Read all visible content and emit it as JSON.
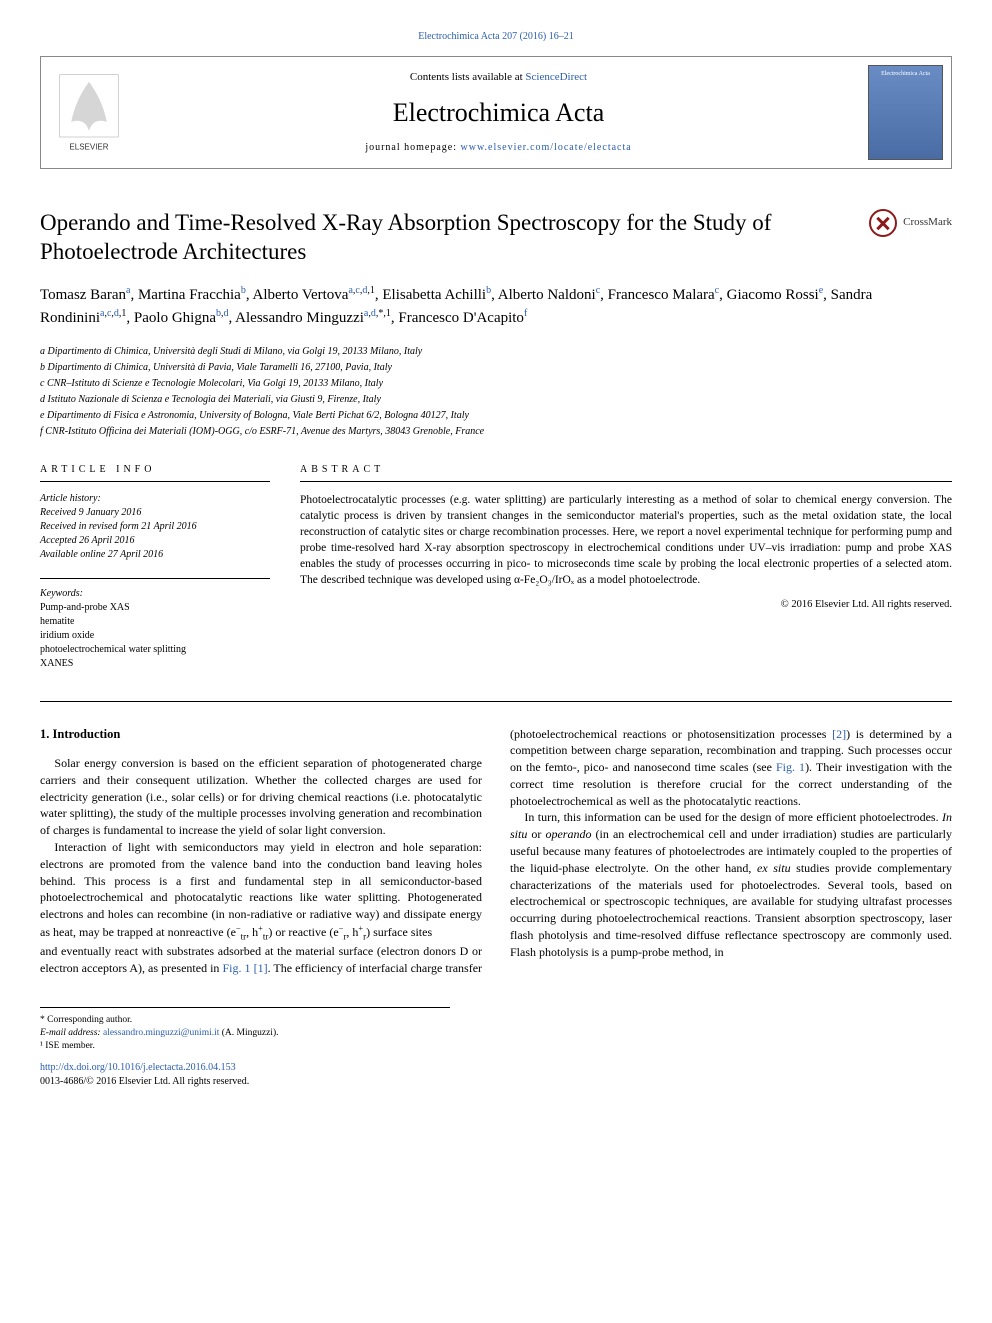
{
  "journal": {
    "top_link_text": "Electrochimica Acta 207 (2016) 16–21",
    "contents_prefix": "Contents lists available at ",
    "contents_link": "ScienceDirect",
    "name": "Electrochimica Acta",
    "homepage_prefix": "journal homepage: ",
    "homepage_link": "www.elsevier.com/locate/electacta",
    "publisher_logo_alt": "ELSEVIER",
    "cover_label": "Electrochimica Acta"
  },
  "crossmark": {
    "label": "CrossMark"
  },
  "article": {
    "title": "Operando and Time-Resolved X-Ray Absorption Spectroscopy for the Study of Photoelectrode Architectures",
    "authors_html": "Tomasz Baran<sup><a class=\"sup-link\">a</a></sup>, Martina Fracchia<sup><a class=\"sup-link\">b</a></sup>, Alberto Vertova<sup><a class=\"sup-link\">a</a>,<a class=\"sup-link\">c</a>,<a class=\"sup-link\">d</a>,1</sup>, Elisabetta Achilli<sup><a class=\"sup-link\">b</a></sup>, Alberto Naldoni<sup><a class=\"sup-link\">c</a></sup>, Francesco Malara<sup><a class=\"sup-link\">c</a></sup>, Giacomo Rossi<sup><a class=\"sup-link\">e</a></sup>, Sandra Rondinini<sup><a class=\"sup-link\">a</a>,<a class=\"sup-link\">c</a>,<a class=\"sup-link\">d</a>,1</sup>, Paolo Ghigna<sup><a class=\"sup-link\">b</a>,<a class=\"sup-link\">d</a></sup>, Alessandro Minguzzi<sup><a class=\"sup-link\">a</a>,<a class=\"sup-link\">d</a>,*,1</sup>, Francesco D'Acapito<sup><a class=\"sup-link\">f</a></sup>"
  },
  "affiliations": [
    "a Dipartimento di Chimica, Università degli Studi di Milano, via Golgi 19, 20133 Milano, Italy",
    "b Dipartimento di Chimica, Università di Pavia, Viale Taramelli 16, 27100, Pavia, Italy",
    "c CNR–Istituto di Scienze e Tecnologie Molecolari, Via Golgi 19, 20133 Milano, Italy",
    "d Istituto Nazionale di Scienza e Tecnologia dei Materiali, via Giusti 9, Firenze, Italy",
    "e Dipartimento di Fisica e Astronomia, University of Bologna, Viale Berti Pichat 6/2, Bologna 40127, Italy",
    "f CNR-Istituto Officina dei Materiali (IOM)-OGG, c/o ESRF-71, Avenue des Martyrs, 38043 Grenoble, France"
  ],
  "article_info": {
    "label": "ARTICLE INFO",
    "history_label": "Article history:",
    "history": [
      "Received 9 January 2016",
      "Received in revised form 21 April 2016",
      "Accepted 26 April 2016",
      "Available online 27 April 2016"
    ],
    "keywords_label": "Keywords:",
    "keywords": [
      "Pump-and-probe XAS",
      "hematite",
      "iridium oxide",
      "photoelectrochemical water splitting",
      "XANES"
    ]
  },
  "abstract": {
    "label": "ABSTRACT",
    "text": "Photoelectrocatalytic processes (e.g. water splitting) are particularly interesting as a method of solar to chemical energy conversion. The catalytic process is driven by transient changes in the semiconductor material's properties, such as the metal oxidation state, the local reconstruction of catalytic sites or charge recombination processes. Here, we report a novel experimental technique for performing pump and probe time-resolved hard X-ray absorption spectroscopy in electrochemical conditions under UV–vis irradiation: pump and probe XAS enables the study of processes occurring in pico- to microseconds time scale by probing the local electronic properties of a selected atom. The described technique was developed using α-Fe₂O₃/IrOₓ as a model photoelectrode.",
    "copyright": "© 2016 Elsevier Ltd. All rights reserved."
  },
  "body": {
    "heading": "1. Introduction",
    "p1": "Solar energy conversion is based on the efficient separation of photogenerated charge carriers and their consequent utilization. Whether the collected charges are used for electricity generation (i.e., solar cells) or for driving chemical reactions (i.e. photocatalytic water splitting), the study of the multiple processes involving generation and recombination of charges is fundamental to increase the yield of solar light conversion.",
    "p2_html": "Interaction of light with semiconductors may yield in electron and hole separation: electrons are promoted from the valence band into the conduction band leaving holes behind. This process is a first and fundamental step in all semiconductor-based photoelectrochemical and photocatalytic reactions like water splitting. Photogenerated electrons and holes can recombine (in non-radiative or radiative way) and dissipate energy as heat, may be trapped at nonreactive (e<sup>−</sup><sub>tr</sub>, h<sup>+</sup><sub>tr</sub>) or reactive (e<sup>−</sup><sub>r</sub>, h<sup>+</sup><sub>r</sub>) surface sites",
    "p3_html": "and eventually react with substrates adsorbed at the material surface (electron donors D or electron acceptors A), as presented in <a class=\"fig-link\">Fig. 1</a> <a class=\"ref-link\">[1]</a>. The efficiency of interfacial charge transfer (photoelectrochemical reactions or photosensitization processes <a class=\"ref-link\">[2]</a>) is determined by a competition between charge separation, recombination and trapping. Such processes occur on the femto-, pico- and nanosecond time scales (see <a class=\"fig-link\">Fig. 1</a>). Their investigation with the correct time resolution is therefore crucial for the correct understanding of the photoelectrochemical as well as the photocatalytic reactions.",
    "p4_html": "In turn, this information can be used for the design of more efficient photoelectrodes. <i>In situ</i> or <i>operando</i> (in an electrochemical cell and under irradiation) studies are particularly useful because many features of photoelectrodes are intimately coupled to the properties of the liquid-phase electrolyte. On the other hand, <i>ex situ</i> studies provide complementary characterizations of the materials used for photoelectrodes. Several tools, based on electrochemical or spectroscopic techniques, are available for studying ultrafast processes occurring during photoelectrochemical reactions. Transient absorption spectroscopy, laser flash photolysis and time-resolved diffuse reflectance spectroscopy are commonly used. Flash photolysis is a pump-probe method, in"
  },
  "footnotes": {
    "corresponding": "* Corresponding author.",
    "email_label": "E-mail address: ",
    "email": "alessandro.minguzzi@unimi.it",
    "email_name": " (A. Minguzzi).",
    "note1": "¹ ISE member."
  },
  "doi": {
    "link": "http://dx.doi.org/10.1016/j.electacta.2016.04.153",
    "issn_line": "0013-4686/© 2016 Elsevier Ltd. All rights reserved."
  },
  "colors": {
    "link": "#2a5db0",
    "text": "#000000",
    "border": "#000000",
    "cover_bg_top": "#6a8cc4",
    "cover_bg_bottom": "#4a6ca4",
    "crossmark_ring": "#8b1a1a"
  }
}
